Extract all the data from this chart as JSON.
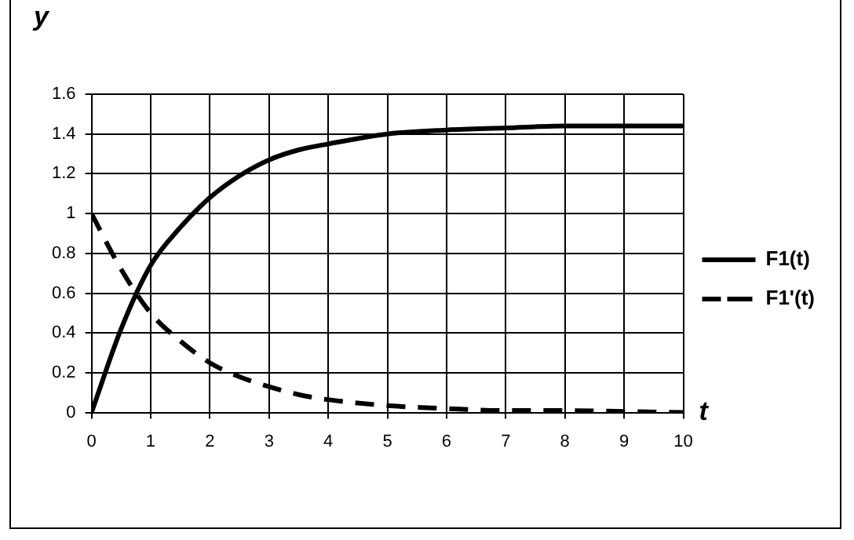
{
  "chart_data": {
    "type": "line",
    "xlabel": "t",
    "ylabel": "y",
    "xlim": [
      0,
      10
    ],
    "xticks": [
      0,
      1,
      2,
      3,
      4,
      5,
      6,
      7,
      8,
      9,
      10
    ],
    "ylim": [
      0,
      1.6
    ],
    "yticks": [
      0,
      0.2,
      0.4,
      0.6,
      0.8,
      1,
      1.2,
      1.4,
      1.6
    ],
    "grid": true,
    "legend": "right",
    "marker": "none",
    "series": [
      {
        "name": "F1(t)",
        "color": "#000000",
        "line_style": "solid",
        "x": [
          0,
          0.5,
          1,
          1.5,
          2,
          2.5,
          3,
          3.5,
          4,
          5,
          6,
          7,
          8,
          9,
          10
        ],
        "values": [
          0,
          0.42,
          0.74,
          0.93,
          1.08,
          1.19,
          1.27,
          1.32,
          1.35,
          1.4,
          1.42,
          1.43,
          1.44,
          1.44,
          1.44
        ]
      },
      {
        "name": "F1'(t)",
        "color": "#000000",
        "line_style": "dashed",
        "x": [
          0,
          0.5,
          1,
          1.5,
          2,
          2.5,
          3,
          3.5,
          4,
          5,
          6,
          7,
          8,
          9,
          10
        ],
        "values": [
          1,
          0.72,
          0.5,
          0.36,
          0.25,
          0.18,
          0.13,
          0.09,
          0.065,
          0.035,
          0.02,
          0.01,
          0.01,
          0.005,
          0
        ]
      }
    ]
  }
}
